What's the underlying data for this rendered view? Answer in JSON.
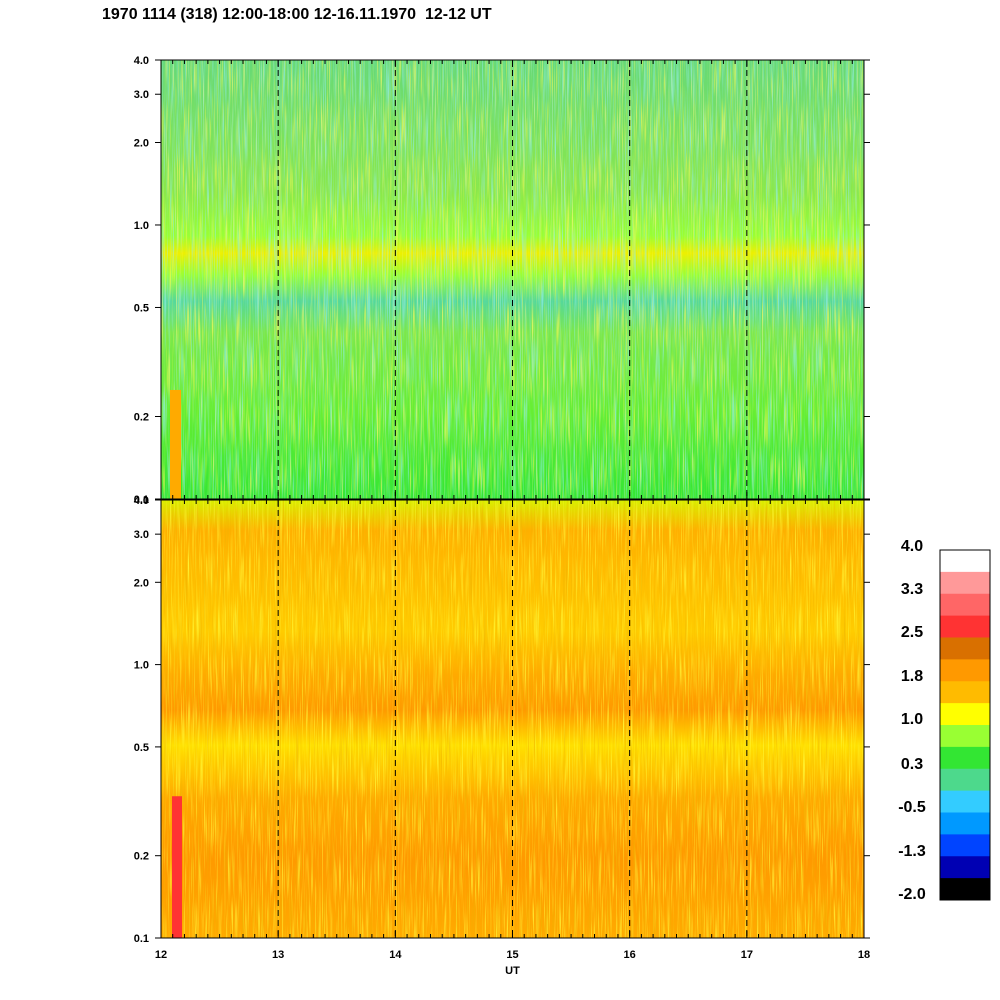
{
  "title": "1970 1114 (318) 12:00-18:00 12-16.11.1970  12-12 UT",
  "chart_data": {
    "type": "heatmap",
    "title": "1970 1114 (318) 12:00-18:00 12-16.11.1970  12-12 UT",
    "xlabel": "UT",
    "ylabel": "",
    "x_range": [
      12,
      18
    ],
    "x_ticks": [
      "12",
      "13",
      "14",
      "15",
      "16",
      "17",
      "18"
    ],
    "y_scale": "log",
    "y_range": [
      0.1,
      4.0
    ],
    "y_ticks": [
      {
        "value": 0.1,
        "label": "0.1"
      },
      {
        "value": 0.2,
        "label": "0.2"
      },
      {
        "value": 0.5,
        "label": "0.5"
      },
      {
        "value": 1.0,
        "label": "1.0"
      },
      {
        "value": 2.0,
        "label": "2.0"
      },
      {
        "value": 3.0,
        "label": "3.0"
      },
      {
        "value": 4.0,
        "label": "4.0"
      }
    ],
    "dashed_vertical_lines_x": [
      13,
      14,
      15,
      16,
      17
    ],
    "panels": [
      {
        "name": "",
        "description_levels": "mostly green/yellow-green, blue-green above 1.0, yellow band near 0.65"
      },
      {
        "name": "",
        "description_levels": "mostly orange/yellow, darker orange band near 0.65 and 0.15-0.4"
      }
    ],
    "colorbar": {
      "labels": [
        "4.0",
        "3.3",
        "2.5",
        "1.8",
        "1.0",
        "0.3",
        "-0.5",
        "-1.3",
        "-2.0"
      ],
      "colors": [
        "#ffffff",
        "#ff9999",
        "#ff6666",
        "#ff3333",
        "#d97000",
        "#ff9900",
        "#ffbb00",
        "#ffff00",
        "#99ff33",
        "#33e633",
        "#4dd98c",
        "#33ccff",
        "#0099ff",
        "#0044ff",
        "#0000b3",
        "#000000"
      ]
    }
  }
}
